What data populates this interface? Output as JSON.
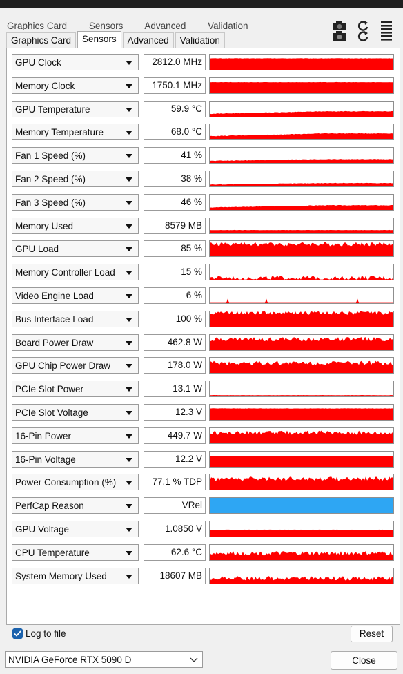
{
  "ghost_tabs": [
    "Graphics Card",
    "Sensors",
    "Advanced",
    "Validation"
  ],
  "tabs": [
    {
      "label": "Graphics Card",
      "active": false
    },
    {
      "label": "Sensors",
      "active": true
    },
    {
      "label": "Advanced",
      "active": false
    },
    {
      "label": "Validation",
      "active": false
    }
  ],
  "toolbar_icons": [
    "camera-icon",
    "refresh-icon",
    "menu-icon"
  ],
  "sensors": [
    {
      "label": "GPU Clock",
      "value": "2812.0 MHz",
      "level": 0.75,
      "style": "flat"
    },
    {
      "label": "Memory Clock",
      "value": "1750.1 MHz",
      "level": 0.72,
      "style": "flat"
    },
    {
      "label": "GPU Temperature",
      "value": "59.9 °C",
      "level": 0.35,
      "style": "rising"
    },
    {
      "label": "Memory Temperature",
      "value": "68.0 °C",
      "level": 0.4,
      "style": "rising"
    },
    {
      "label": "Fan 1 Speed (%)",
      "value": "41 %",
      "level": 0.25,
      "style": "rising"
    },
    {
      "label": "Fan 2 Speed (%)",
      "value": "38 %",
      "level": 0.22,
      "style": "rising"
    },
    {
      "label": "Fan 3 Speed (%)",
      "value": "46 %",
      "level": 0.3,
      "style": "rising"
    },
    {
      "label": "Memory Used",
      "value": "8579 MB",
      "level": 0.22,
      "style": "flat"
    },
    {
      "label": "GPU Load",
      "value": "85 %",
      "level": 0.8,
      "style": "noisy"
    },
    {
      "label": "Memory Controller Load",
      "value": "15 %",
      "level": 0.12,
      "style": "noisy"
    },
    {
      "label": "Video Engine Load",
      "value": "6 %",
      "level": 0.05,
      "style": "sparse"
    },
    {
      "label": "Bus Interface Load",
      "value": "100 %",
      "level": 0.92,
      "style": "noisy"
    },
    {
      "label": "Board Power Draw",
      "value": "462.8 W",
      "level": 0.72,
      "style": "noisy"
    },
    {
      "label": "GPU Chip Power Draw",
      "value": "178.0 W",
      "level": 0.65,
      "style": "noisy"
    },
    {
      "label": "PCIe Slot Power",
      "value": "13.1 W",
      "level": 0.08,
      "style": "flat"
    },
    {
      "label": "PCIe Slot Voltage",
      "value": "12.3 V",
      "level": 0.75,
      "style": "flat"
    },
    {
      "label": "16-Pin Power",
      "value": "449.7 W",
      "level": 0.7,
      "style": "noisy"
    },
    {
      "label": "16-Pin Voltage",
      "value": "12.2 V",
      "level": 0.7,
      "style": "flat"
    },
    {
      "label": "Power Consumption (%)",
      "value": "77.1 % TDP",
      "level": 0.72,
      "style": "noisy"
    },
    {
      "label": "PerfCap Reason",
      "value": "VRel",
      "level": 1.0,
      "style": "perfcap"
    },
    {
      "label": "GPU Voltage",
      "value": "1.0850 V",
      "level": 0.45,
      "style": "flat"
    },
    {
      "label": "CPU Temperature",
      "value": "62.6 °C",
      "level": 0.45,
      "style": "noisy"
    },
    {
      "label": "System Memory Used",
      "value": "18607 MB",
      "level": 0.35,
      "style": "noisy"
    }
  ],
  "log_to_file": {
    "label": "Log to file",
    "checked": true
  },
  "reset_label": "Reset",
  "gpu_select": {
    "value": "NVIDIA GeForce RTX 5090 D"
  },
  "close_label": "Close",
  "colors": {
    "graph": "#ff0000",
    "perfcap": "#2ea6f3",
    "check": "#1b62ad"
  }
}
